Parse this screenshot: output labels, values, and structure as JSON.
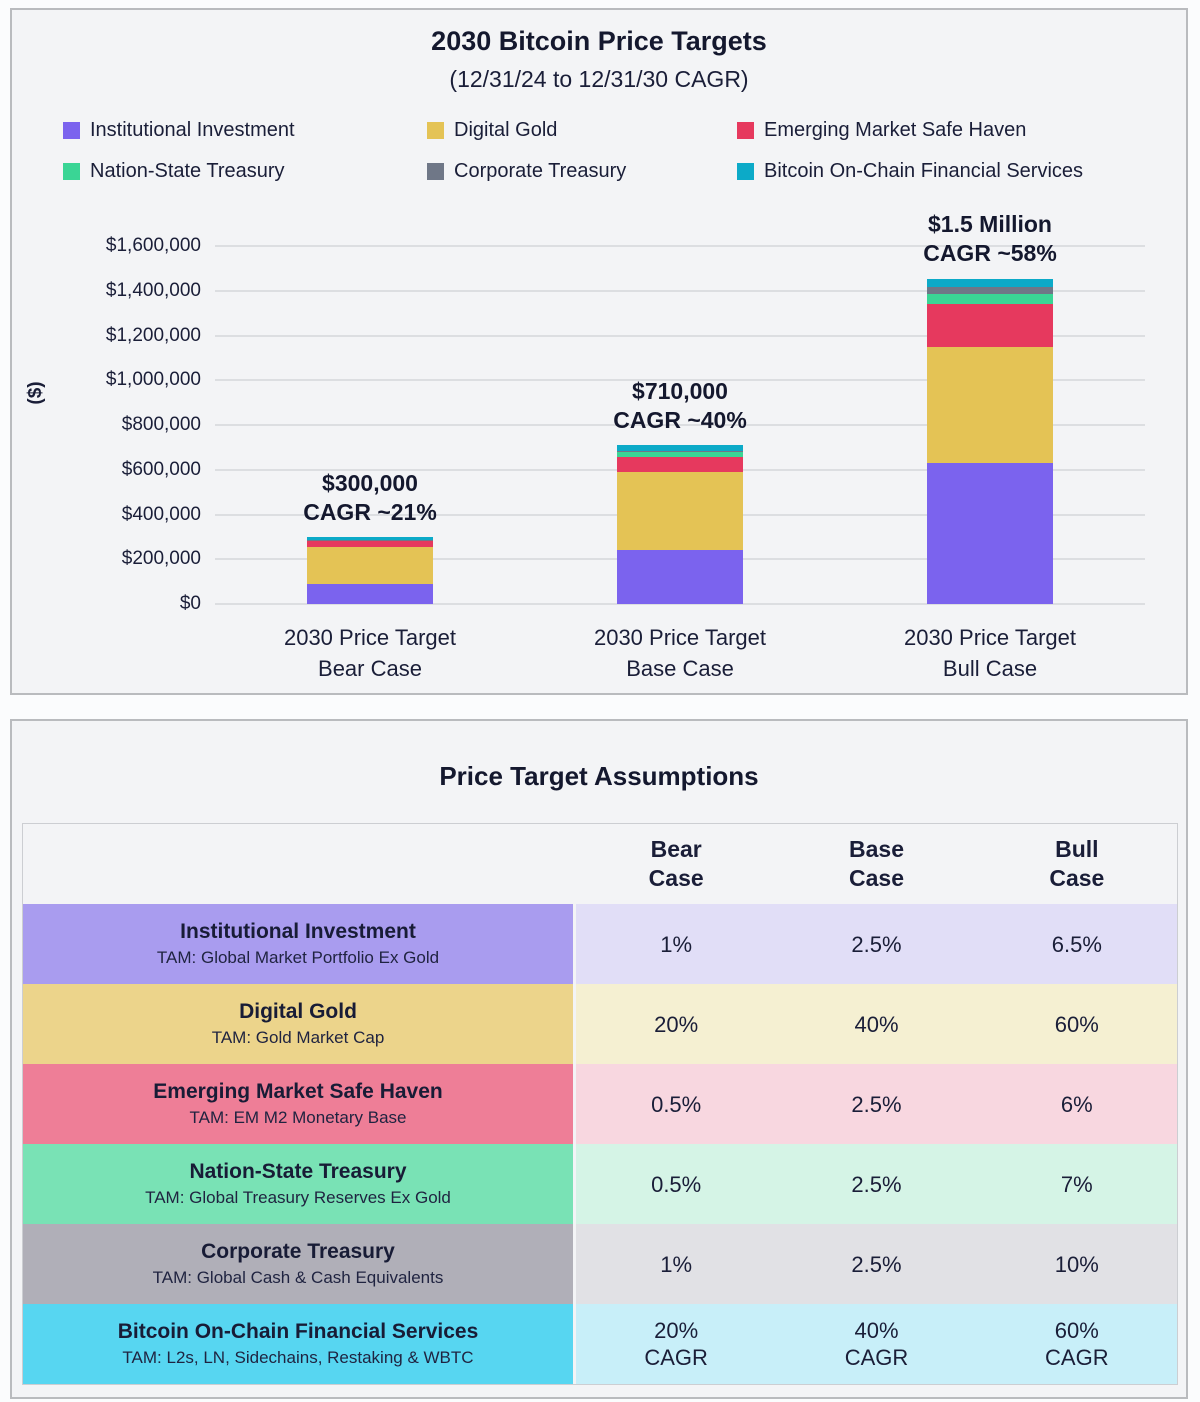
{
  "chart": {
    "title": "2030 Bitcoin Price Targets",
    "subtitle": "(12/31/24 to 12/31/30 CAGR)",
    "y_axis_label": "($)"
  },
  "chart_data": {
    "type": "bar",
    "stacked": true,
    "grid": true,
    "legend_position": "top",
    "ylim": [
      0,
      1600000
    ],
    "categories": [
      [
        "2030 Price Target",
        "Bear Case"
      ],
      [
        "2030 Price Target",
        "Base Case"
      ],
      [
        "2030 Price Target",
        "Bull Case"
      ]
    ],
    "annotations": [
      [
        "$300,000",
        "CAGR ~21%"
      ],
      [
        "$710,000",
        "CAGR ~40%"
      ],
      [
        "$1.5 Million",
        "CAGR ~58%"
      ]
    ],
    "series": [
      {
        "name": "Institutional Investment",
        "color": "#7b63ee",
        "values": [
          90000,
          240000,
          630000
        ]
      },
      {
        "name": "Digital Gold",
        "color": "#e4c355",
        "values": [
          165000,
          350000,
          520000
        ]
      },
      {
        "name": "Emerging Market Safe Haven",
        "color": "#e6395e",
        "values": [
          27000,
          68000,
          190000
        ]
      },
      {
        "name": "Nation-State Treasury",
        "color": "#3ad595",
        "values": [
          2000,
          20000,
          45000
        ]
      },
      {
        "name": "Corporate Treasury",
        "color": "#6f7787",
        "values": [
          1000,
          5000,
          30000
        ]
      },
      {
        "name": "Bitcoin On-Chain Financial Services",
        "color": "#0caac8",
        "values": [
          15000,
          27000,
          40000
        ]
      }
    ],
    "bar_totals": [
      300000,
      710000,
      1455000
    ],
    "y_ticks": [
      {
        "value": 0,
        "label": "$0"
      },
      {
        "value": 200000,
        "label": "$200,000"
      },
      {
        "value": 400000,
        "label": "$400,000"
      },
      {
        "value": 600000,
        "label": "$600,000"
      },
      {
        "value": 800000,
        "label": "$800,000"
      },
      {
        "value": 1000000,
        "label": "$1,000,000"
      },
      {
        "value": 1200000,
        "label": "$1,200,000"
      },
      {
        "value": 1400000,
        "label": "$1,400,000"
      },
      {
        "value": 1600000,
        "label": "$1,600,000"
      }
    ]
  },
  "table": {
    "title": "Price Target Assumptions",
    "columns": [
      [
        "Bear",
        "Case"
      ],
      [
        "Base",
        "Case"
      ],
      [
        "Bull",
        "Case"
      ]
    ],
    "rows": [
      {
        "name": "Institutional Investment",
        "tam": "TAM: Global Market Portfolio Ex Gold",
        "label_bg": "#a99cef",
        "value_bg": "#e1def7",
        "values": [
          [
            "1%"
          ],
          [
            "2.5%"
          ],
          [
            "6.5%"
          ]
        ]
      },
      {
        "name": "Digital Gold",
        "tam": "TAM: Gold Market Cap",
        "label_bg": "#ecd48b",
        "value_bg": "#f5f0d2",
        "values": [
          [
            "20%"
          ],
          [
            "40%"
          ],
          [
            "60%"
          ]
        ]
      },
      {
        "name": "Emerging Market Safe Haven",
        "tam": "TAM: EM M2 Monetary Base",
        "label_bg": "#ee7e97",
        "value_bg": "#f8d7e0",
        "values": [
          [
            "0.5%"
          ],
          [
            "2.5%"
          ],
          [
            "6%"
          ]
        ]
      },
      {
        "name": "Nation-State Treasury",
        "tam": "TAM: Global Treasury Reserves Ex Gold",
        "label_bg": "#79e2b5",
        "value_bg": "#d5f4e6",
        "values": [
          [
            "0.5%"
          ],
          [
            "2.5%"
          ],
          [
            "7%"
          ]
        ]
      },
      {
        "name": "Corporate Treasury",
        "tam": "TAM: Global Cash & Cash Equivalents",
        "label_bg": "#b0afb8",
        "value_bg": "#e1e1e5",
        "values": [
          [
            "1%"
          ],
          [
            "2.5%"
          ],
          [
            "10%"
          ]
        ]
      },
      {
        "name": "Bitcoin On-Chain Financial Services",
        "tam": "TAM: L2s, LN, Sidechains, Restaking & WBTC",
        "label_bg": "#57d6f1",
        "value_bg": "#c8eff9",
        "values": [
          [
            "20%",
            "CAGR"
          ],
          [
            "40%",
            "CAGR"
          ],
          [
            "60%",
            "CAGR"
          ]
        ]
      }
    ]
  }
}
